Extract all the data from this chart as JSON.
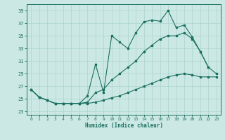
{
  "xlabel": "Humidex (Indice chaleur)",
  "background_color": "#cce8e4",
  "grid_color": "#aad4cc",
  "line_color": "#1a7060",
  "xlim": [
    -0.5,
    23.5
  ],
  "ylim": [
    22.5,
    40.0
  ],
  "xticks": [
    0,
    1,
    2,
    3,
    4,
    5,
    6,
    7,
    8,
    9,
    10,
    11,
    12,
    13,
    14,
    15,
    16,
    17,
    18,
    19,
    20,
    21,
    22,
    23
  ],
  "yticks": [
    23,
    25,
    27,
    29,
    31,
    33,
    35,
    37,
    39
  ],
  "line_bottom": {
    "x": [
      0,
      1,
      2,
      3,
      4,
      5,
      6,
      7,
      8,
      9,
      10,
      11,
      12,
      13,
      14,
      15,
      16,
      17,
      18,
      19,
      20,
      21,
      22,
      23
    ],
    "y": [
      26.5,
      25.3,
      24.8,
      24.3,
      24.3,
      24.3,
      24.3,
      24.3,
      24.5,
      24.8,
      25.2,
      25.5,
      26.0,
      26.5,
      27.0,
      27.5,
      28.0,
      28.5,
      28.8,
      29.0,
      28.8,
      28.5,
      28.5,
      28.5
    ]
  },
  "line_middle": {
    "x": [
      0,
      1,
      2,
      3,
      4,
      5,
      6,
      7,
      8,
      9,
      10,
      11,
      12,
      13,
      14,
      15,
      16,
      17,
      18,
      19,
      20,
      21,
      22,
      23
    ],
    "y": [
      26.5,
      25.3,
      24.8,
      24.3,
      24.3,
      24.3,
      24.3,
      24.5,
      26.0,
      26.5,
      28.0,
      29.0,
      30.0,
      31.0,
      32.5,
      33.5,
      34.5,
      35.0,
      35.0,
      35.5,
      34.5,
      32.5,
      30.0,
      29.0
    ]
  },
  "line_top": {
    "x": [
      0,
      1,
      2,
      3,
      4,
      5,
      6,
      7,
      8,
      9,
      10,
      11,
      12,
      13,
      14,
      15,
      16,
      17,
      18,
      19,
      20,
      21,
      22,
      23
    ],
    "y": [
      26.5,
      25.3,
      24.8,
      24.3,
      24.3,
      24.3,
      24.3,
      25.5,
      30.5,
      26.0,
      35.0,
      34.0,
      33.0,
      35.5,
      37.2,
      37.5,
      37.3,
      39.0,
      36.3,
      36.7,
      34.8,
      32.5,
      30.0,
      null
    ]
  }
}
